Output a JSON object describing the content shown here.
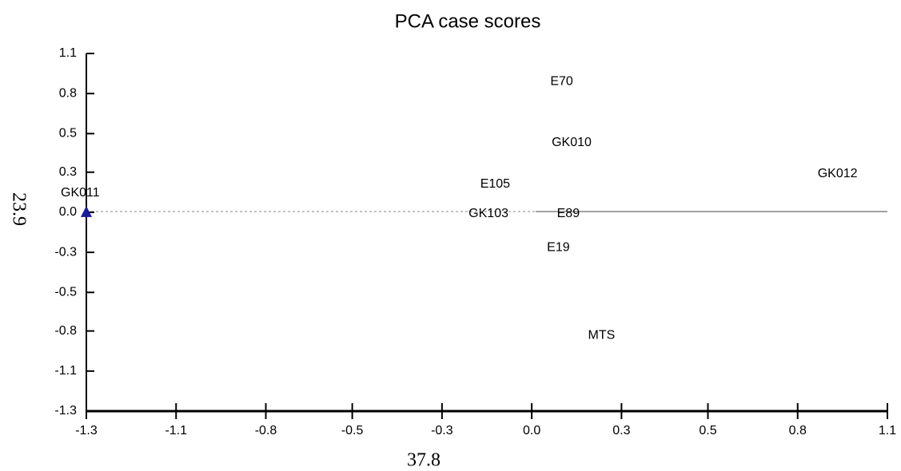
{
  "chart_data": {
    "type": "scatter",
    "title": "PCA case scores",
    "x_label": "37.8",
    "y_label": "23.9",
    "labels": [
      "GK011",
      "E70",
      "GK010",
      "GK012",
      "E105",
      "GK103",
      "E89",
      "E19",
      "MTS"
    ],
    "x": [
      -1.33,
      0.1,
      0.13,
      0.93,
      -0.1,
      -0.12,
      0.12,
      0.09,
      0.22
    ],
    "y": [
      0.01,
      0.89,
      0.48,
      0.27,
      0.2,
      0.0,
      0.0,
      -0.23,
      -0.82
    ],
    "markers": [
      true,
      false,
      false,
      false,
      false,
      false,
      false,
      false,
      false
    ],
    "color": "#1a1aa0",
    "xlim": [
      -1.33,
      1.08
    ],
    "ylim": [
      -1.33,
      1.08
    ],
    "xticks": [
      {
        "value": -1.33,
        "label": "-1.3"
      },
      {
        "value": -1.06,
        "label": "-1.1"
      },
      {
        "value": -0.79,
        "label": "-0.8"
      },
      {
        "value": -0.53,
        "label": "-0.5"
      },
      {
        "value": -0.26,
        "label": "-0.3"
      },
      {
        "value": 0.01,
        "label": "0.0"
      },
      {
        "value": 0.28,
        "label": "0.3"
      },
      {
        "value": 0.54,
        "label": "0.5"
      },
      {
        "value": 0.81,
        "label": "0.8"
      },
      {
        "value": 1.08,
        "label": "1.1"
      }
    ],
    "yticks": [
      {
        "value": -1.33,
        "label": "-1.3"
      },
      {
        "value": -1.06,
        "label": "-1.1"
      },
      {
        "value": -0.79,
        "label": "-0.8"
      },
      {
        "value": -0.53,
        "label": "-0.5"
      },
      {
        "value": -0.26,
        "label": "-0.3"
      },
      {
        "value": 0.01,
        "label": "0.0"
      },
      {
        "value": 0.28,
        "label": "0.3"
      },
      {
        "value": 0.54,
        "label": "0.5"
      },
      {
        "value": 0.81,
        "label": "0.8"
      },
      {
        "value": 1.08,
        "label": "1.1"
      }
    ]
  }
}
